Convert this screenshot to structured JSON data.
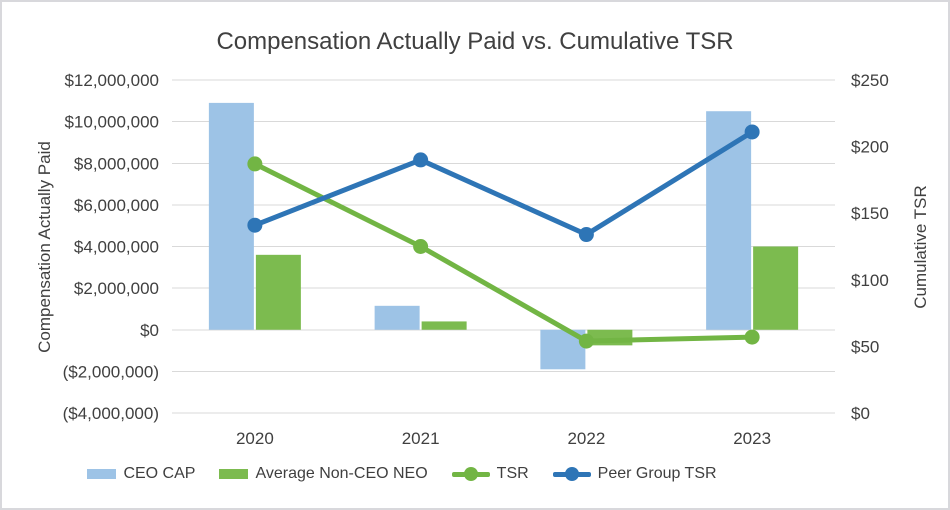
{
  "window": {
    "title": "Compensation Actually Paid vs. Cumulative TSR"
  },
  "chart_data": {
    "type": "combo-bar-line",
    "title": "Compensation Actually Paid vs. Cumulative TSR",
    "categories": [
      "2020",
      "2021",
      "2022",
      "2023"
    ],
    "series": [
      {
        "name": "CEO CAP",
        "type": "bar",
        "axis": "left",
        "color": "#9dc3e6",
        "values": [
          10900000,
          1150000,
          -1900000,
          10500000
        ]
      },
      {
        "name": "Average Non-CEO NEO",
        "type": "bar",
        "axis": "left",
        "color": "#7cbb4f",
        "values": [
          3600000,
          400000,
          -750000,
          4000000
        ]
      },
      {
        "name": "TSR",
        "type": "line",
        "axis": "right",
        "color": "#72b544",
        "values": [
          187,
          125,
          54,
          57
        ]
      },
      {
        "name": "Peer Group TSR",
        "type": "line",
        "axis": "right",
        "color": "#2e75b6",
        "values": [
          141,
          190,
          134,
          211
        ]
      }
    ],
    "left_axis": {
      "title": "Compensation Actually Paid",
      "min": -4000000,
      "max": 12000000,
      "step": 2000000,
      "tick_labels": [
        "($4,000,000)",
        "($2,000,000)",
        "$0",
        "$2,000,000",
        "$4,000,000",
        "$6,000,000",
        "$8,000,000",
        "$10,000,000",
        "$12,000,000"
      ],
      "text_color": "#404040",
      "negative_color": "#ff0000"
    },
    "right_axis": {
      "title": "Cumulative TSR",
      "min": 0,
      "max": 250,
      "step": 50,
      "tick_labels": [
        "$0",
        "$50",
        "$100",
        "$150",
        "$200",
        "$250"
      ],
      "text_color": "#404040"
    },
    "grid": true,
    "gridline_color": "#d9d9d9",
    "legend_position": "bottom",
    "title_color": "#404040"
  }
}
